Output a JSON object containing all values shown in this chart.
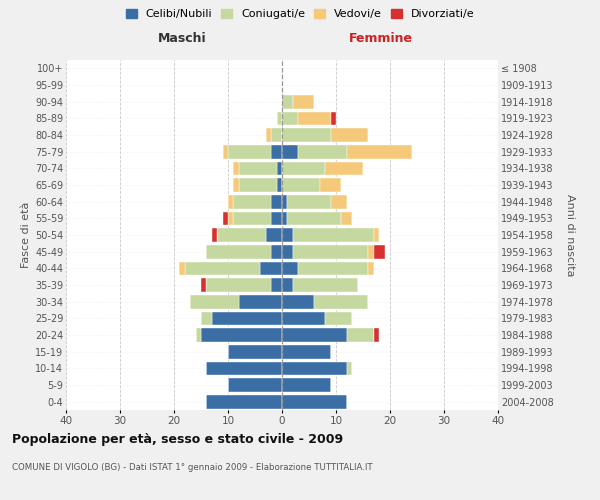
{
  "age_groups": [
    "100+",
    "95-99",
    "90-94",
    "85-89",
    "80-84",
    "75-79",
    "70-74",
    "65-69",
    "60-64",
    "55-59",
    "50-54",
    "45-49",
    "40-44",
    "35-39",
    "30-34",
    "25-29",
    "20-24",
    "15-19",
    "10-14",
    "5-9",
    "0-4"
  ],
  "birth_years": [
    "≤ 1908",
    "1909-1913",
    "1914-1918",
    "1919-1923",
    "1924-1928",
    "1929-1933",
    "1934-1938",
    "1939-1943",
    "1944-1948",
    "1949-1953",
    "1954-1958",
    "1959-1963",
    "1964-1968",
    "1969-1973",
    "1974-1978",
    "1979-1983",
    "1984-1988",
    "1989-1993",
    "1994-1998",
    "1999-2003",
    "2004-2008"
  ],
  "colors": {
    "celibi": "#3a6ea5",
    "coniugati": "#c5d8a0",
    "vedovi": "#f5c97a",
    "divorziati": "#d63030"
  },
  "males": {
    "celibi": [
      0,
      0,
      0,
      0,
      0,
      2,
      1,
      1,
      2,
      2,
      3,
      2,
      4,
      2,
      8,
      13,
      15,
      10,
      14,
      10,
      14
    ],
    "coniugati": [
      0,
      0,
      0,
      1,
      2,
      8,
      7,
      7,
      7,
      7,
      9,
      12,
      14,
      12,
      9,
      2,
      1,
      0,
      0,
      0,
      0
    ],
    "vedovi": [
      0,
      0,
      0,
      0,
      1,
      1,
      1,
      1,
      1,
      1,
      0,
      0,
      1,
      0,
      0,
      0,
      0,
      0,
      0,
      0,
      0
    ],
    "divorziati": [
      0,
      0,
      0,
      0,
      0,
      0,
      0,
      0,
      0,
      1,
      1,
      0,
      0,
      1,
      0,
      0,
      0,
      0,
      0,
      0,
      0
    ]
  },
  "females": {
    "celibi": [
      0,
      0,
      0,
      0,
      0,
      3,
      0,
      0,
      1,
      1,
      2,
      2,
      3,
      2,
      6,
      8,
      12,
      9,
      12,
      9,
      12
    ],
    "coniugati": [
      0,
      0,
      2,
      3,
      9,
      9,
      8,
      7,
      8,
      10,
      15,
      14,
      13,
      12,
      10,
      5,
      5,
      0,
      1,
      0,
      0
    ],
    "vedovi": [
      0,
      0,
      4,
      6,
      7,
      12,
      7,
      4,
      3,
      2,
      1,
      1,
      1,
      0,
      0,
      0,
      0,
      0,
      0,
      0,
      0
    ],
    "divorziati": [
      0,
      0,
      0,
      1,
      0,
      0,
      0,
      0,
      0,
      0,
      0,
      2,
      0,
      0,
      0,
      0,
      1,
      0,
      0,
      0,
      0
    ]
  },
  "title": "Popolazione per età, sesso e stato civile - 2009",
  "subtitle": "COMUNE DI VIGOLO (BG) - Dati ISTAT 1° gennaio 2009 - Elaborazione TUTTITALIA.IT",
  "xlabel_left": "Maschi",
  "xlabel_right": "Femmine",
  "ylabel_left": "Fasce di età",
  "ylabel_right": "Anni di nascita",
  "xlim": 40,
  "bg_color": "#f0f0f0",
  "plot_bg_color": "#ffffff",
  "legend_labels": [
    "Celibi/Nubili",
    "Coniugati/e",
    "Vedovi/e",
    "Divorziati/e"
  ]
}
